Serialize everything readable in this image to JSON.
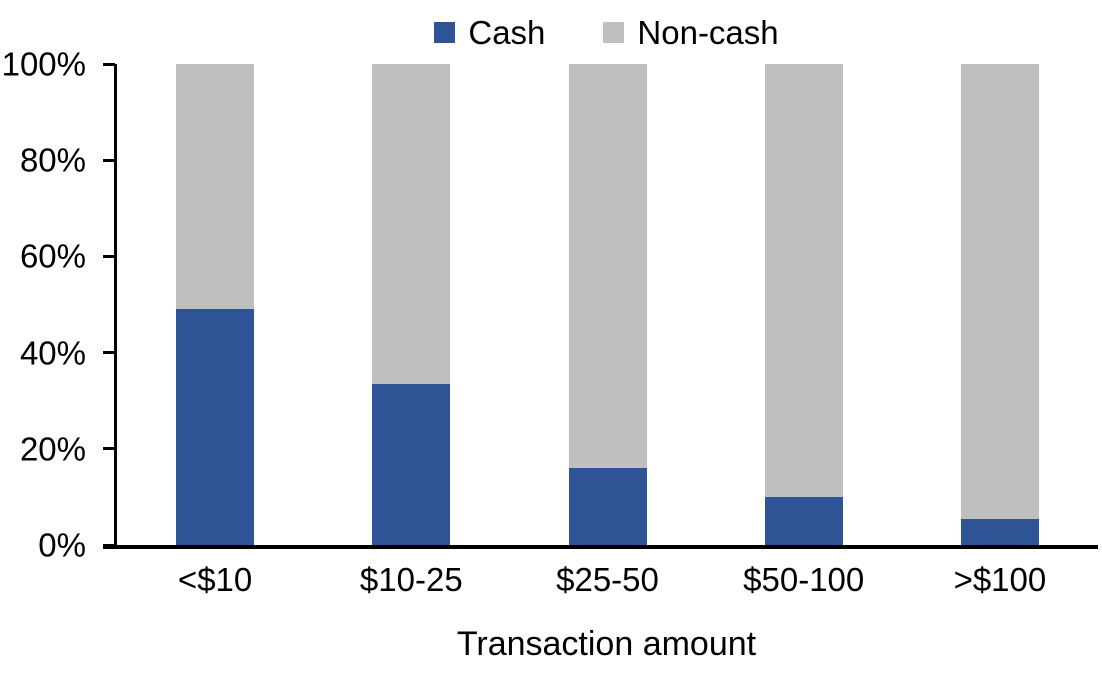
{
  "chart_data": {
    "type": "bar",
    "stacked": true,
    "percent_stacked": true,
    "title": "",
    "xlabel": "Transaction amount",
    "ylabel": "",
    "ylim": [
      0,
      100
    ],
    "grid": false,
    "legend_position": "top-center",
    "categories": [
      "<$10",
      "$10-25",
      "$25-50",
      "$50-100",
      ">$100"
    ],
    "yticks": [
      "0%",
      "20%",
      "40%",
      "60%",
      "80%",
      "100%"
    ],
    "series": [
      {
        "name": "Cash",
        "color": "#2F5496",
        "values": [
          49,
          33.5,
          16,
          10,
          5.5
        ]
      },
      {
        "name": "Non-cash",
        "color": "#BFBFBF",
        "values": [
          51,
          66.5,
          84,
          90,
          94.5
        ]
      }
    ]
  },
  "colors": {
    "axis": "#000000",
    "background": "#FFFFFF",
    "cash": "#2F5496",
    "noncash": "#BFBFBF"
  }
}
